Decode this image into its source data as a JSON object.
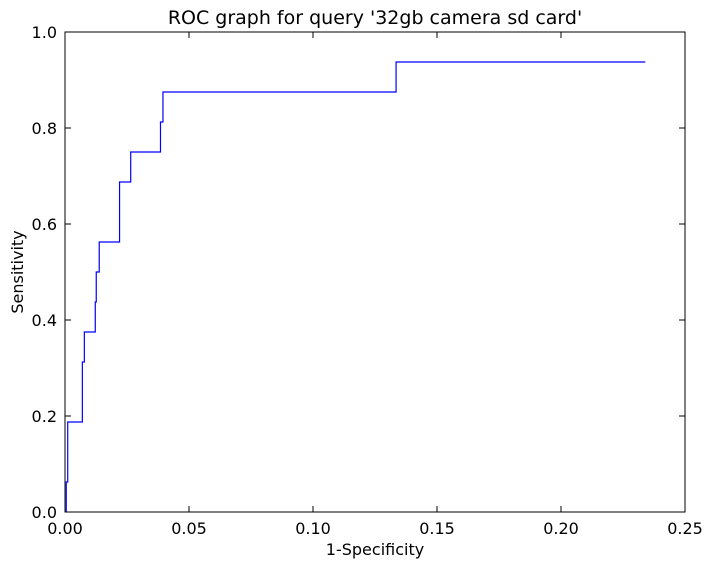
{
  "chart_data": {
    "type": "line",
    "title": "ROC graph for query '32gb camera sd card'",
    "xlabel": "1-Specificity",
    "ylabel": "Sensitivity",
    "xlim": [
      0.0,
      0.25
    ],
    "ylim": [
      0.0,
      1.0
    ],
    "xticks": [
      0.0,
      0.05,
      0.1,
      0.15,
      0.2,
      0.25
    ],
    "xtick_labels": [
      "0.00",
      "0.05",
      "0.10",
      "0.15",
      "0.20",
      "0.25"
    ],
    "yticks": [
      0.0,
      0.2,
      0.4,
      0.6,
      0.8,
      1.0
    ],
    "ytick_labels": [
      "0.0",
      "0.2",
      "0.4",
      "0.6",
      "0.8",
      "1.0"
    ],
    "grid": false,
    "step": true,
    "series": [
      {
        "color": "#0000ff",
        "x": [
          0.0005,
          0.0011,
          0.007,
          0.0078,
          0.0122,
          0.0126,
          0.0138,
          0.022,
          0.0265,
          0.0385,
          0.0395,
          0.1335,
          0.234
        ],
        "y": [
          0.0625,
          0.1875,
          0.3125,
          0.375,
          0.4375,
          0.5,
          0.5625,
          0.6875,
          0.75,
          0.8125,
          0.875,
          0.9375,
          0.9375
        ]
      }
    ]
  }
}
